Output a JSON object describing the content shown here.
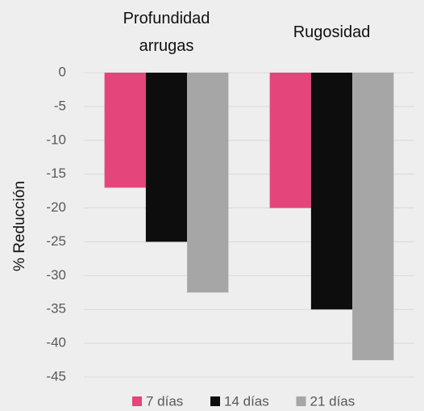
{
  "chart_data": {
    "type": "bar",
    "ylabel": "% Reducción",
    "categories": [
      "Profundidad arrugas",
      "Rugosidad"
    ],
    "series": [
      {
        "name": "7 días",
        "color": "#e4457a",
        "values": [
          -17,
          -20
        ]
      },
      {
        "name": "14 días",
        "color": "#0d0d0d",
        "values": [
          -25,
          -35
        ]
      },
      {
        "name": "21 días",
        "color": "#a6a6a6",
        "values": [
          -32.5,
          -42.5
        ]
      }
    ],
    "ylim": [
      -45,
      0
    ],
    "yticks": [
      0,
      -5,
      -10,
      -15,
      -20,
      -25,
      -30,
      -35,
      -40,
      -45
    ],
    "grid": true,
    "legend": "bottom"
  }
}
